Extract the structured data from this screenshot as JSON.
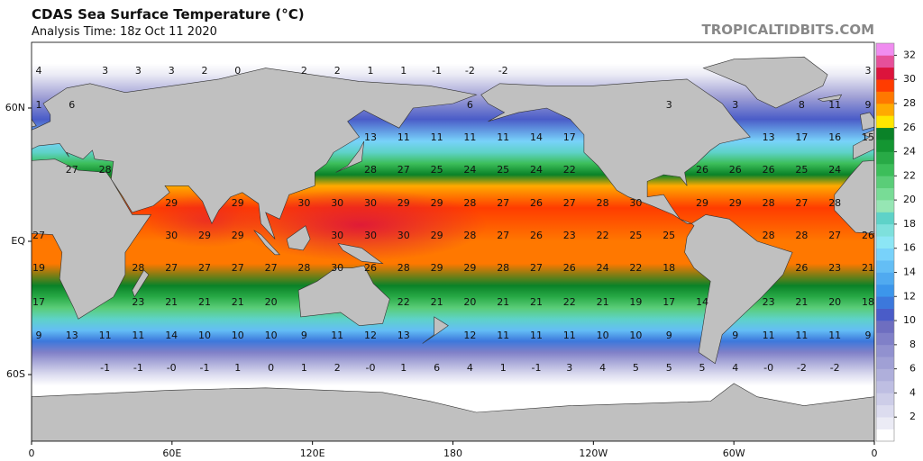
{
  "header": {
    "title": "CDAS Sea Surface Temperature (°C)",
    "subtitle": "Analysis Time: 18z Oct 11 2020",
    "credit": "TROPICALTIDBITS.COM"
  },
  "map": {
    "lat_labels": [
      "60N",
      "EQ",
      "60S"
    ],
    "lon_labels": [
      "0",
      "60E",
      "120E",
      "180",
      "120W",
      "60W",
      "0"
    ],
    "rows": [
      [
        4,
        null,
        3,
        3,
        3,
        2,
        0,
        null,
        2,
        2,
        1,
        1,
        -1,
        -2,
        -2,
        null,
        null,
        null,
        null,
        null,
        null,
        null,
        null,
        null,
        null,
        3
      ],
      [
        1,
        6,
        null,
        null,
        null,
        null,
        null,
        null,
        null,
        null,
        null,
        null,
        null,
        6,
        null,
        null,
        null,
        null,
        null,
        3,
        null,
        3,
        null,
        8,
        11,
        9
      ],
      [
        null,
        null,
        null,
        null,
        null,
        null,
        null,
        null,
        null,
        null,
        13,
        11,
        11,
        11,
        11,
        14,
        17,
        null,
        null,
        null,
        null,
        null,
        13,
        17,
        16,
        15
      ],
      [
        null,
        27,
        28,
        null,
        null,
        null,
        null,
        null,
        null,
        null,
        28,
        27,
        25,
        24,
        25,
        24,
        22,
        null,
        null,
        null,
        26,
        26,
        26,
        25,
        24,
        null
      ],
      [
        null,
        null,
        null,
        null,
        29,
        null,
        29,
        null,
        30,
        30,
        30,
        29,
        29,
        28,
        27,
        26,
        27,
        28,
        30,
        null,
        29,
        29,
        28,
        27,
        28,
        null
      ],
      [
        27,
        null,
        null,
        null,
        30,
        29,
        29,
        null,
        null,
        30,
        30,
        30,
        29,
        28,
        27,
        26,
        23,
        22,
        25,
        25,
        null,
        null,
        28,
        28,
        27,
        26
      ],
      [
        19,
        null,
        null,
        28,
        27,
        27,
        27,
        27,
        28,
        30,
        26,
        28,
        29,
        29,
        28,
        27,
        26,
        24,
        22,
        18,
        null,
        null,
        null,
        26,
        23,
        21
      ],
      [
        17,
        null,
        null,
        23,
        21,
        21,
        21,
        20,
        null,
        null,
        null,
        22,
        21,
        20,
        21,
        21,
        22,
        21,
        19,
        17,
        14,
        null,
        23,
        21,
        20,
        18
      ],
      [
        9,
        13,
        11,
        11,
        14,
        10,
        10,
        10,
        9,
        11,
        12,
        13,
        null,
        12,
        11,
        11,
        11,
        10,
        10,
        9,
        null,
        9,
        11,
        11,
        11,
        9
      ],
      [
        null,
        null,
        -1,
        -1,
        "-0",
        -1,
        1,
        0,
        1,
        2,
        "-0",
        1,
        6,
        4,
        1,
        -1,
        3,
        4,
        5,
        5,
        5,
        4,
        "-0",
        -2,
        -2,
        null
      ]
    ]
  },
  "colorbar": {
    "lim": [
      0,
      33
    ],
    "ticks": [
      2,
      4,
      6,
      8,
      10,
      12,
      14,
      16,
      18,
      20,
      22,
      24,
      26,
      28,
      30,
      32
    ],
    "colors": [
      "#ffffff",
      "#ebebf5",
      "#dcdcef",
      "#cdcde8",
      "#bebee2",
      "#afafdb",
      "#a0a0d5",
      "#9191cf",
      "#8080c8",
      "#6e6ec0",
      "#4a5cc8",
      "#3c78dc",
      "#3c96eb",
      "#50aaf0",
      "#64bef5",
      "#78d2fa",
      "#8ce6f5",
      "#7ee0dc",
      "#5ed2c8",
      "#96e6b4",
      "#78dc96",
      "#5acd78",
      "#3cbe5a",
      "#28aa46",
      "#149632",
      "#0a8228",
      "#ffe600",
      "#ffaa00",
      "#ff7800",
      "#ff3c00",
      "#dc143c",
      "#e6509a",
      "#f08cf0"
    ]
  }
}
